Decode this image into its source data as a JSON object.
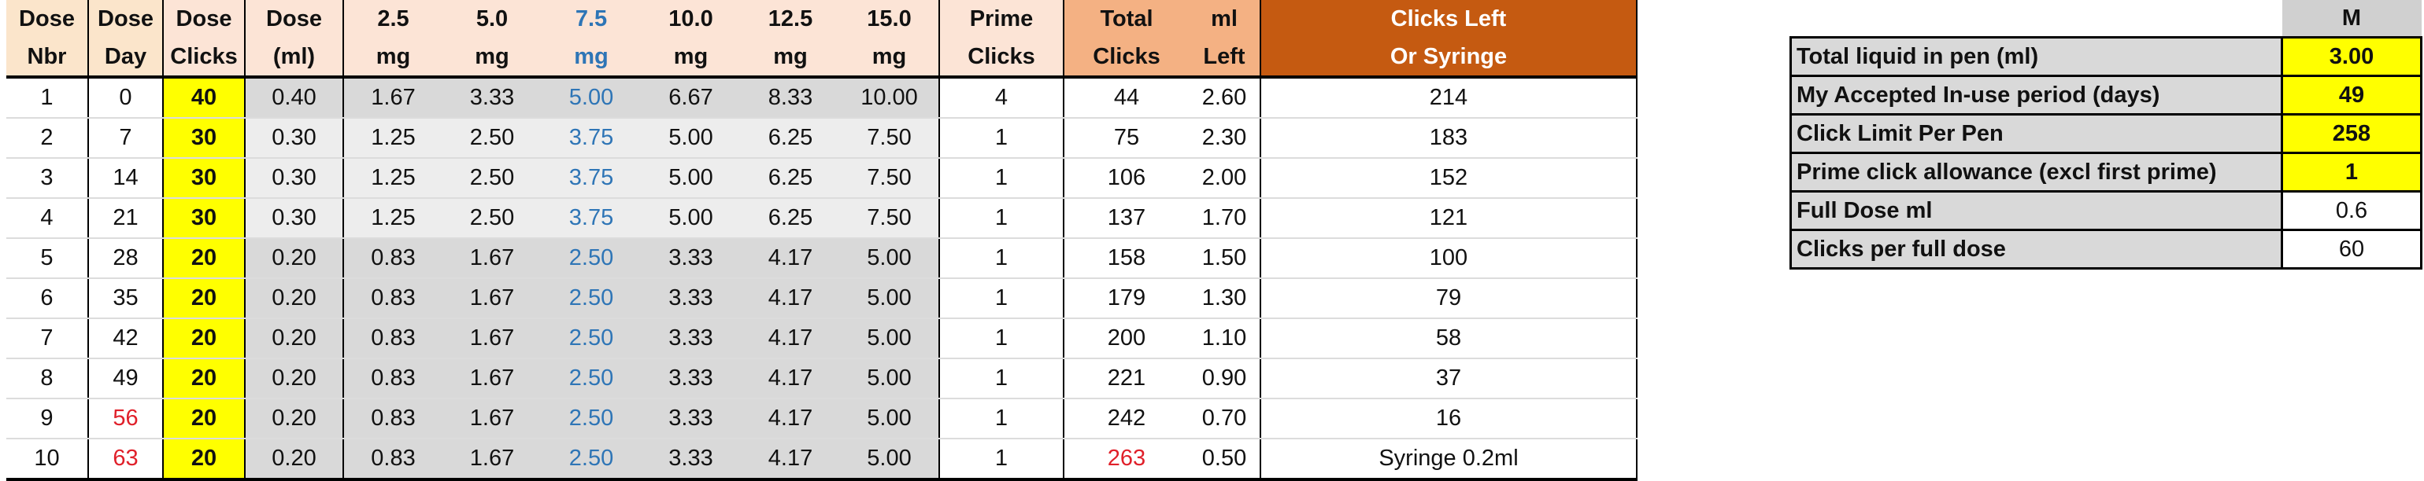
{
  "dose_table": {
    "headers_top": [
      "Dose",
      "Dose",
      "Dose",
      "Dose",
      "2.5",
      "5.0",
      "7.5",
      "10.0",
      "12.5",
      "15.0",
      "Prime",
      "Total",
      "ml",
      "Clicks Left"
    ],
    "headers_bottom": [
      "Nbr",
      "Day",
      "Clicks",
      "(ml)",
      "mg",
      "mg",
      "mg",
      "mg",
      "mg",
      "mg",
      "Clicks",
      "Clicks",
      "Left",
      "Or Syringe"
    ],
    "rows": [
      [
        "1",
        "0",
        "40",
        "0.40",
        "1.67",
        "3.33",
        "5.00",
        "6.67",
        "8.33",
        "10.00",
        "4",
        "44",
        "2.60",
        "214"
      ],
      [
        "2",
        "7",
        "30",
        "0.30",
        "1.25",
        "2.50",
        "3.75",
        "5.00",
        "6.25",
        "7.50",
        "1",
        "75",
        "2.30",
        "183"
      ],
      [
        "3",
        "14",
        "30",
        "0.30",
        "1.25",
        "2.50",
        "3.75",
        "5.00",
        "6.25",
        "7.50",
        "1",
        "106",
        "2.00",
        "152"
      ],
      [
        "4",
        "21",
        "30",
        "0.30",
        "1.25",
        "2.50",
        "3.75",
        "5.00",
        "6.25",
        "7.50",
        "1",
        "137",
        "1.70",
        "121"
      ],
      [
        "5",
        "28",
        "20",
        "0.20",
        "0.83",
        "1.67",
        "2.50",
        "3.33",
        "4.17",
        "5.00",
        "1",
        "158",
        "1.50",
        "100"
      ],
      [
        "6",
        "35",
        "20",
        "0.20",
        "0.83",
        "1.67",
        "2.50",
        "3.33",
        "4.17",
        "5.00",
        "1",
        "179",
        "1.30",
        "79"
      ],
      [
        "7",
        "42",
        "20",
        "0.20",
        "0.83",
        "1.67",
        "2.50",
        "3.33",
        "4.17",
        "5.00",
        "1",
        "200",
        "1.10",
        "58"
      ],
      [
        "8",
        "49",
        "20",
        "0.20",
        "0.83",
        "1.67",
        "2.50",
        "3.33",
        "4.17",
        "5.00",
        "1",
        "221",
        "0.90",
        "37"
      ],
      [
        "9",
        "56",
        "20",
        "0.20",
        "0.83",
        "1.67",
        "2.50",
        "3.33",
        "4.17",
        "5.00",
        "1",
        "242",
        "0.70",
        "16"
      ],
      [
        "10",
        "63",
        "20",
        "0.20",
        "0.83",
        "1.67",
        "2.50",
        "3.33",
        "4.17",
        "5.00",
        "1",
        "263",
        "0.50",
        "Syringe 0.2ml"
      ]
    ],
    "red_cells": [
      [
        8,
        1
      ],
      [
        9,
        1
      ],
      [
        9,
        11
      ]
    ]
  },
  "settings": {
    "column_header": "M",
    "items": [
      {
        "label": "Total liquid in pen (ml)",
        "value": "3.00",
        "highlight": true
      },
      {
        "label": "My Accepted In-use period (days)",
        "value": "49",
        "highlight": true
      },
      {
        "label": "Click Limit Per Pen",
        "value": "258",
        "highlight": true
      },
      {
        "label": "Prime click allowance (excl first prime)",
        "value": "1",
        "highlight": true
      },
      {
        "label": "Full Dose ml",
        "value": "0.6",
        "highlight": false
      },
      {
        "label": "Clicks per full dose",
        "value": "60",
        "highlight": false
      }
    ]
  },
  "colors": {
    "input_yellow": "#ffff00",
    "header_orange": "#c55a11",
    "header_peach": "#f4b183",
    "blue_text": "#2e75b6",
    "red_text": "#e0202a"
  }
}
